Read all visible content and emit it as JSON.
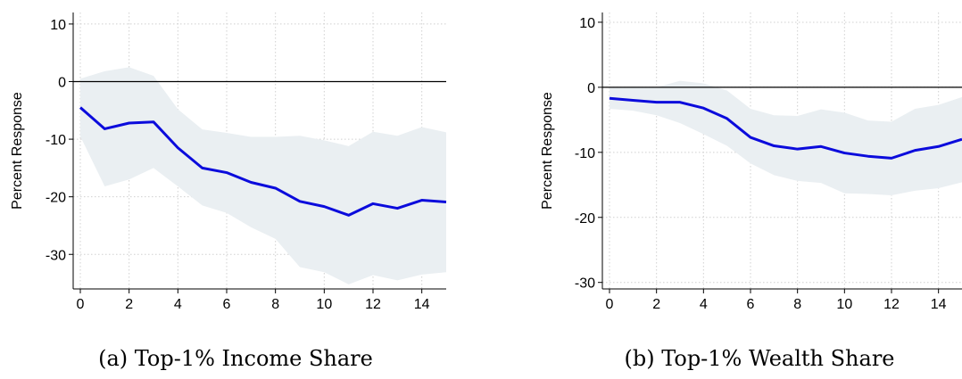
{
  "chart_data": [
    {
      "type": "line",
      "caption": "(a) Top-1% Income Share",
      "ylabel": "Percent Response",
      "xlabel": "",
      "xlim": [
        0,
        15
      ],
      "ylim": [
        -36,
        12
      ],
      "xticks": [
        0,
        2,
        4,
        6,
        8,
        10,
        12,
        14
      ],
      "yticks": [
        10,
        0,
        -10,
        -20,
        -30
      ],
      "grid": true,
      "x": [
        0,
        1,
        2,
        3,
        4,
        5,
        6,
        7,
        8,
        9,
        10,
        11,
        12,
        13,
        14,
        15
      ],
      "series": [
        {
          "values": [
            -4.5,
            -8.2,
            -7.2,
            -7.0,
            -11.5,
            -15.0,
            -15.8,
            -17.5,
            -18.5,
            -20.8,
            -21.7,
            -23.2,
            -21.2,
            -22.0,
            -20.6,
            -20.9
          ]
        }
      ],
      "band_upper": [
        0.5,
        1.8,
        2.5,
        1.0,
        -4.8,
        -8.3,
        -8.9,
        -9.6,
        -9.6,
        -9.4,
        -10.2,
        -11.2,
        -8.7,
        -9.4,
        -7.9,
        -8.8
      ],
      "band_lower": [
        -9.5,
        -18.2,
        -17.0,
        -15.0,
        -18.2,
        -21.5,
        -22.8,
        -25.3,
        -27.3,
        -32.2,
        -33.1,
        -35.2,
        -33.6,
        -34.5,
        -33.5,
        -33.1
      ],
      "colors": {
        "line": "#0b0bdc",
        "band": "#eaeff2",
        "zero_line": "#000000"
      }
    },
    {
      "type": "line",
      "caption": "(b) Top-1% Wealth Share",
      "ylabel": "Percent Response",
      "xlabel": "",
      "xlim": [
        0,
        15
      ],
      "ylim": [
        -31,
        11.5
      ],
      "xticks": [
        0,
        2,
        4,
        6,
        8,
        10,
        12,
        14
      ],
      "yticks": [
        10,
        0,
        -10,
        -20,
        -30
      ],
      "grid": true,
      "x": [
        0,
        1,
        2,
        3,
        4,
        5,
        6,
        7,
        8,
        9,
        10,
        11,
        12,
        13,
        14,
        15
      ],
      "series": [
        {
          "values": [
            -1.7,
            -2.0,
            -2.3,
            -2.3,
            -3.2,
            -4.8,
            -7.7,
            -9.0,
            -9.5,
            -9.1,
            -10.1,
            -10.6,
            -10.9,
            -9.7,
            -9.1,
            -8.0
          ]
        }
      ],
      "band_upper": [
        -0.1,
        0.1,
        0.0,
        1.0,
        0.6,
        -0.5,
        -3.3,
        -4.3,
        -4.4,
        -3.4,
        -3.9,
        -5.1,
        -5.3,
        -3.3,
        -2.7,
        -1.5
      ],
      "band_lower": [
        -3.3,
        -3.6,
        -4.3,
        -5.5,
        -7.2,
        -9.0,
        -11.7,
        -13.5,
        -14.4,
        -14.7,
        -16.3,
        -16.4,
        -16.6,
        -15.9,
        -15.5,
        -14.6
      ],
      "colors": {
        "line": "#0b0bdc",
        "band": "#eaeff2",
        "zero_line": "#000000"
      }
    }
  ]
}
